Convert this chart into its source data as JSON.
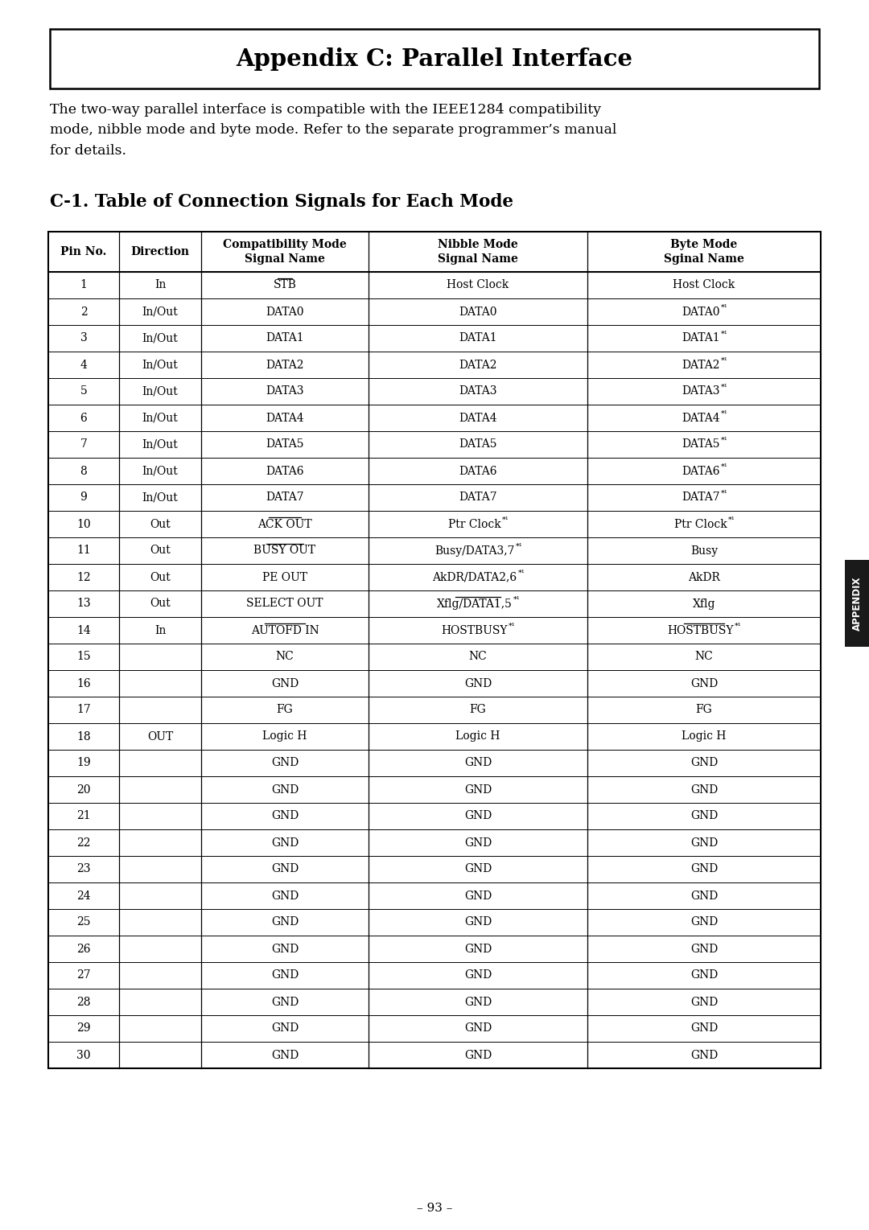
{
  "page_title": "Appendix C: Parallel Interface",
  "intro_text": "The two-way parallel interface is compatible with the IEEE1284 compatibility\nmode, nibble mode and byte mode. Refer to the separate programmer’s manual\nfor details.",
  "section_title": "C-1. Table of Connection Signals for Each Mode",
  "col_headers": [
    "Pin No.",
    "Direction",
    "Compatibility Mode\nSignal Name",
    "Nibble Mode\nSignal Name",
    "Byte Mode\nSginal Name"
  ],
  "rows": [
    [
      "1",
      "In",
      "STB",
      "Host Clock",
      "Host Clock",
      true,
      false,
      false,
      false
    ],
    [
      "2",
      "In/Out",
      "DATA0",
      "DATA0",
      "DATA0 *1",
      false,
      false,
      false,
      false
    ],
    [
      "3",
      "In/Out",
      "DATA1",
      "DATA1",
      "DATA1 *1",
      false,
      false,
      false,
      false
    ],
    [
      "4",
      "In/Out",
      "DATA2",
      "DATA2",
      "DATA2 *1",
      false,
      false,
      false,
      false
    ],
    [
      "5",
      "In/Out",
      "DATA3",
      "DATA3",
      "DATA3 *1",
      false,
      false,
      false,
      false
    ],
    [
      "6",
      "In/Out",
      "DATA4",
      "DATA4",
      "DATA4 *1",
      false,
      false,
      false,
      false
    ],
    [
      "7",
      "In/Out",
      "DATA5",
      "DATA5",
      "DATA5 *1",
      false,
      false,
      false,
      false
    ],
    [
      "8",
      "In/Out",
      "DATA6",
      "DATA6",
      "DATA6 *1",
      false,
      false,
      false,
      false
    ],
    [
      "9",
      "In/Out",
      "DATA7",
      "DATA7",
      "DATA7 *1",
      false,
      false,
      false,
      false
    ],
    [
      "10",
      "Out",
      "ACK OUT",
      "Ptr Clock *1",
      "Ptr Clock *1",
      true,
      false,
      false,
      false
    ],
    [
      "11",
      "Out",
      "BUSY OUT",
      "Busy/DATA3,7 *1",
      "Busy",
      true,
      false,
      false,
      false
    ],
    [
      "12",
      "Out",
      "PE OUT",
      "AkDR/DATA2,6 *1",
      "AkDR",
      false,
      false,
      false,
      false
    ],
    [
      "13",
      "Out",
      "SELECT OUT",
      "Xflg/DATA1,5 *1",
      "Xflg",
      false,
      true,
      false,
      false
    ],
    [
      "14",
      "In",
      "AUTOFD IN",
      "HOSTBUSY *1",
      "HOSTBUSY *1",
      true,
      false,
      true,
      true
    ],
    [
      "15",
      "",
      "NC",
      "NC",
      "NC",
      false,
      false,
      false,
      false
    ],
    [
      "16",
      "",
      "GND",
      "GND",
      "GND",
      false,
      false,
      false,
      false
    ],
    [
      "17",
      "",
      "FG",
      "FG",
      "FG",
      false,
      false,
      false,
      false
    ],
    [
      "18",
      "OUT",
      "Logic H",
      "Logic H",
      "Logic H",
      false,
      false,
      false,
      false
    ],
    [
      "19",
      "",
      "GND",
      "GND",
      "GND",
      false,
      false,
      false,
      false
    ],
    [
      "20",
      "",
      "GND",
      "GND",
      "GND",
      false,
      false,
      false,
      false
    ],
    [
      "21",
      "",
      "GND",
      "GND",
      "GND",
      false,
      false,
      false,
      false
    ],
    [
      "22",
      "",
      "GND",
      "GND",
      "GND",
      false,
      false,
      false,
      false
    ],
    [
      "23",
      "",
      "GND",
      "GND",
      "GND",
      false,
      false,
      false,
      false
    ],
    [
      "24",
      "",
      "GND",
      "GND",
      "GND",
      false,
      false,
      false,
      false
    ],
    [
      "25",
      "",
      "GND",
      "GND",
      "GND",
      false,
      false,
      false,
      false
    ],
    [
      "26",
      "",
      "GND",
      "GND",
      "GND",
      false,
      false,
      false,
      false
    ],
    [
      "27",
      "",
      "GND",
      "GND",
      "GND",
      false,
      false,
      false,
      false
    ],
    [
      "28",
      "",
      "GND",
      "GND",
      "GND",
      false,
      false,
      false,
      false
    ],
    [
      "29",
      "",
      "GND",
      "GND",
      "GND",
      false,
      false,
      false,
      false
    ],
    [
      "30",
      "",
      "GND",
      "GND",
      "GND",
      false,
      false,
      false,
      false
    ]
  ],
  "footer_text": "– 93 –",
  "appendix_tab_text": "APPENDIX",
  "bg_color": "#ffffff",
  "text_color": "#000000",
  "tab_bg_color": "#1a1a1a"
}
